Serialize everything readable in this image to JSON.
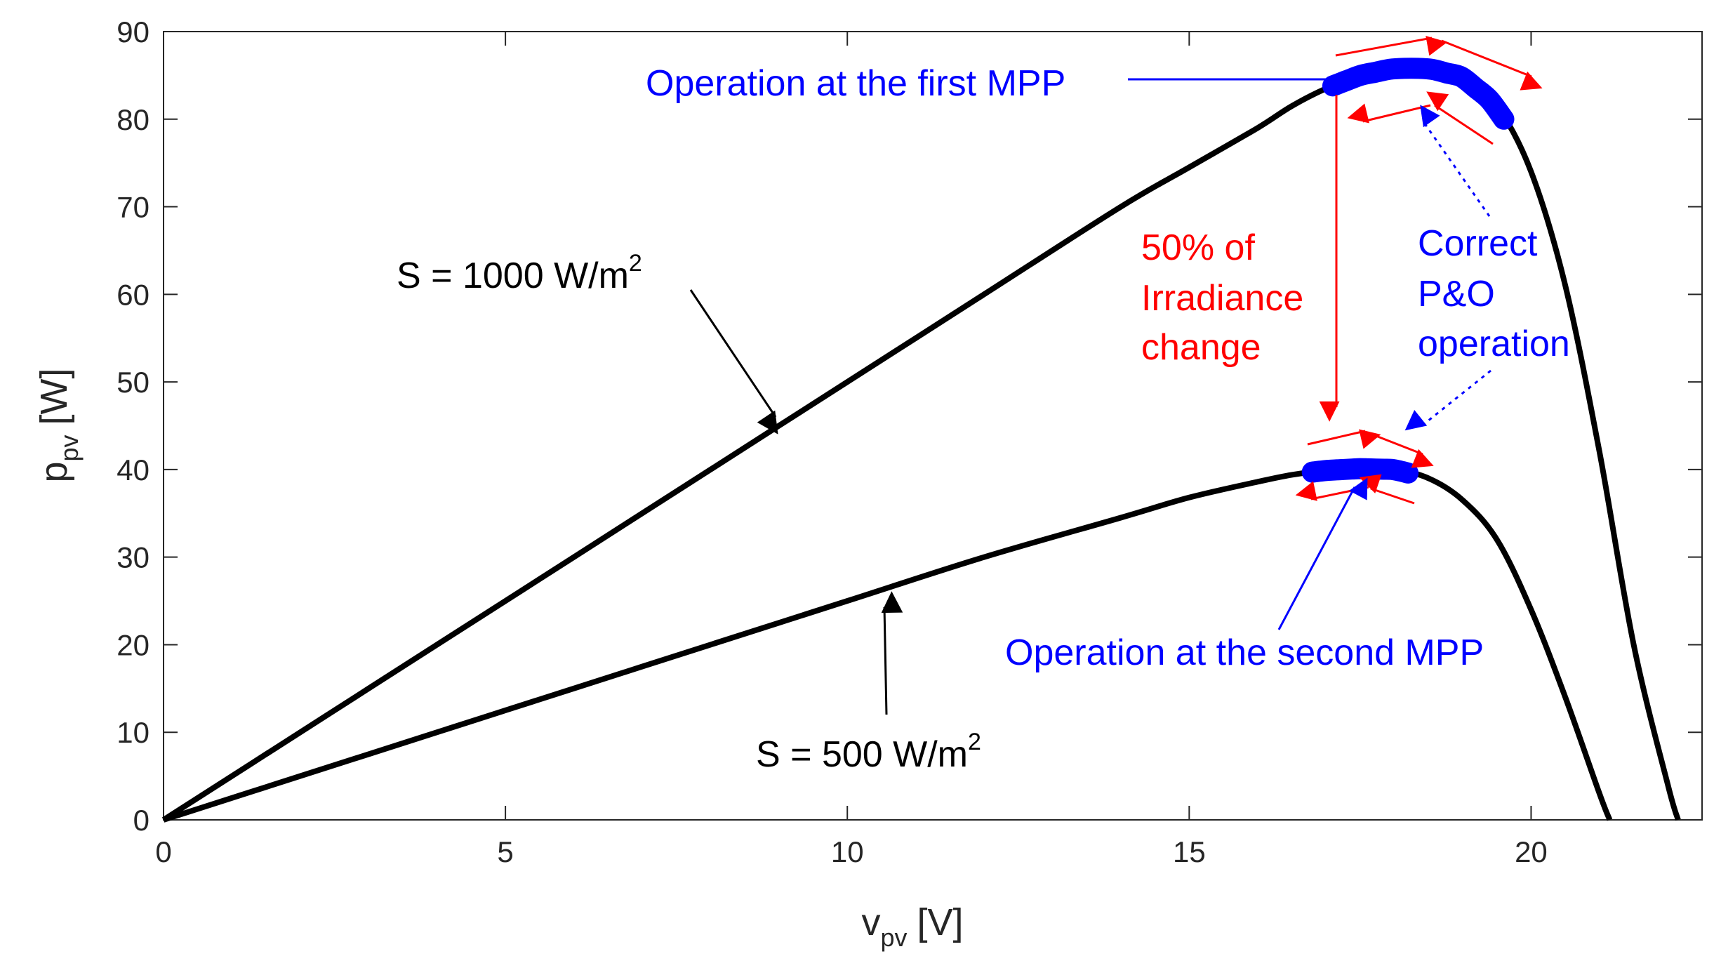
{
  "chart_data": {
    "type": "line",
    "xlabel": {
      "main": "v",
      "sub": "pv",
      "unit": "[V]"
    },
    "ylabel": {
      "main": "p",
      "sub": "pv",
      "unit": "[W]"
    },
    "xlim": [
      0,
      22.5
    ],
    "ylim": [
      0,
      90
    ],
    "xticks": [
      0,
      5,
      10,
      15,
      20
    ],
    "yticks": [
      0,
      10,
      20,
      30,
      40,
      50,
      60,
      70,
      80,
      90
    ],
    "grid": false,
    "series": [
      {
        "name": "S = 1000 W/m2",
        "color": "#000000",
        "x": [
          0,
          2,
          4,
          6,
          8,
          10,
          12,
          14,
          15,
          16,
          16.5,
          17,
          17.5,
          18,
          18.5,
          19,
          19.5,
          20,
          20.5,
          21,
          21.5,
          22,
          22.15
        ],
        "y": [
          0,
          10,
          20,
          30,
          40,
          50,
          60,
          70,
          74.5,
          79,
          81.5,
          83.5,
          85,
          85.8,
          85.8,
          84.8,
          81.5,
          74,
          61,
          42,
          20,
          4,
          0
        ]
      },
      {
        "name": "S = 500 W/m2",
        "color": "#000000",
        "x": [
          0,
          2,
          4,
          6,
          8,
          10,
          12,
          14,
          15,
          16,
          16.5,
          17,
          17.5,
          18,
          18.5,
          19,
          19.5,
          20,
          20.5,
          21,
          21.15
        ],
        "y": [
          0,
          5,
          10,
          15,
          20,
          25,
          30,
          34.5,
          36.8,
          38.6,
          39.4,
          39.9,
          40.1,
          40,
          39,
          36.5,
          32,
          24,
          14,
          3,
          0
        ]
      }
    ],
    "operating_regions": [
      {
        "name": "first MPP",
        "color": "#0000ff",
        "x_range": [
          17.1,
          19.6
        ],
        "series": 0
      },
      {
        "name": "second MPP",
        "color": "#0000ff",
        "x_range": [
          16.8,
          18.2
        ],
        "series": 1
      }
    ],
    "annotations": {
      "s1000": {
        "text": "S = 1000 W/m",
        "sup": "2"
      },
      "s500": {
        "text": "S = 500 W/m",
        "sup": "2"
      },
      "first_mpp": "Operation at the first MPP",
      "second_mpp": "Operation at the second MPP",
      "irradiance": [
        "50% of",
        "Irradiance",
        "change"
      ],
      "po": [
        "Correct",
        "P&O",
        "operation"
      ],
      "colors": {
        "blue": "#0000ff",
        "red": "#ff0000",
        "black": "#000000"
      }
    }
  }
}
